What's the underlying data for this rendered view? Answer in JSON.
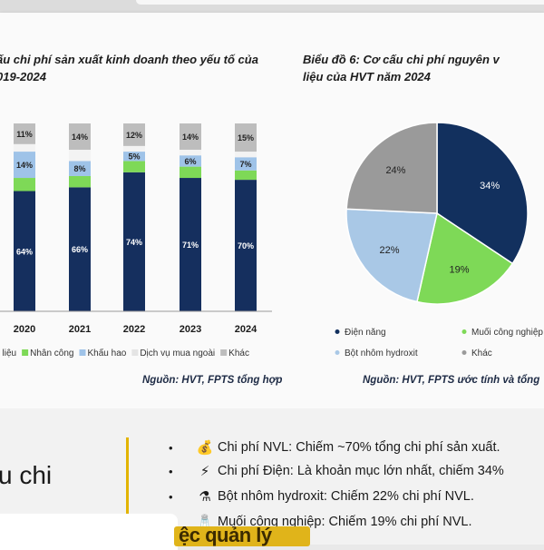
{
  "chart_data": [
    {
      "type": "bar",
      "title": "ấu chi phí sản xuất kinh doanh theo yếu tố của\n019-2024",
      "categories": [
        "2020",
        "2021",
        "2022",
        "2023",
        "2024"
      ],
      "stacked": true,
      "ylim": [
        0,
        100
      ],
      "grid": false,
      "legend_position": "bottom",
      "series": [
        {
          "name": "t liệu",
          "color": "#152f5e",
          "values": [
            64,
            66,
            74,
            71,
            70
          ],
          "labels": [
            "64%",
            "66%",
            "74%",
            "71%",
            "70%"
          ]
        },
        {
          "name": "Nhân công",
          "color": "#7ed957",
          "values": [
            7,
            6,
            6,
            6,
            5
          ]
        },
        {
          "name": "Khấu hao",
          "color": "#9fc3e8",
          "values": [
            14,
            8,
            5,
            6,
            7
          ],
          "labels": [
            "14%",
            "8%",
            "5%",
            "6%",
            "7%"
          ]
        },
        {
          "name": "Dịch vụ mua ngoài",
          "color": "#f3f3f3",
          "values": [
            4,
            6,
            3,
            3,
            3
          ]
        },
        {
          "name": "Khác",
          "color": "#bdbdbd",
          "values": [
            11,
            14,
            12,
            14,
            15
          ],
          "labels": [
            "11%",
            "14%",
            "12%",
            "14%",
            "15%"
          ]
        }
      ],
      "source": "Nguồn: HVT, FPTS tổng hợp"
    },
    {
      "type": "pie",
      "title": "Biểu đồ 6: Cơ cấu chi phí nguyên v\nliệu của HVT năm 2024",
      "slices": [
        {
          "name": "Điện năng",
          "value": 34,
          "label": "34%",
          "color": "#12305e"
        },
        {
          "name": "Muối công nghiệp",
          "value": 19,
          "label": "19%",
          "color": "#7ed957"
        },
        {
          "name": "Bột nhôm hydroxit",
          "value": 22,
          "label": "22%",
          "color": "#a9c8e6"
        },
        {
          "name": "Khác",
          "value": 24,
          "label": "24%",
          "color": "#9a9a9a"
        }
      ],
      "legend_position": "bottom",
      "source": "Nguồn: HVT, FPTS ước tính và tổng"
    }
  ],
  "section_word": "u chi",
  "bullets": [
    {
      "icon": "money-bag-icon",
      "glyph": "💰",
      "text": "Chi phí NVL: Chiếm ~70% tổng chi phí sản xuất."
    },
    {
      "icon": "lightning-icon",
      "glyph": "⚡",
      "text": "Chi phí Điện: Là khoản mục lớn nhất, chiếm 34%"
    },
    {
      "icon": "flask-icon",
      "glyph": "⚗",
      "text": "Bột nhôm hydroxit: Chiếm 22% chi phí NVL."
    },
    {
      "icon": "salt-shaker-icon",
      "glyph": "🧂",
      "text": "Muối công nghiệp: Chiếm 19% chi phí NVL."
    }
  ],
  "caption": "ệc quản lý"
}
